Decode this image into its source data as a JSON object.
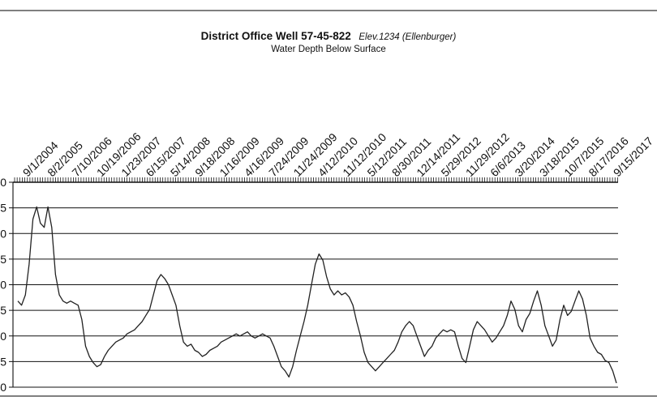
{
  "chart_data": {
    "type": "line",
    "title": "District Office Well 57-45-822",
    "title_note": "Elev.1234 (Ellenburger)",
    "subtitle": "Water Depth Below Surface",
    "x_tick_labels": [
      "9/1/2004",
      "8/2/2005",
      "7/10/2006",
      "10/19/2006",
      "1/23/2007",
      "6/15/2007",
      "5/14/2008",
      "9/18/2008",
      "1/16/2009",
      "4/16/2009",
      "7/24/2009",
      "11/24/2009",
      "4/12/2010",
      "11/12/2010",
      "5/12/2011",
      "8/30/2011",
      "12/14/2011",
      "5/29/2012",
      "11/29/2012",
      "6/6/2013",
      "3/20/2014",
      "3/18/2015",
      "10/7/2015",
      "8/17/2016",
      "9/15/2017"
    ],
    "y_tick_labels": [
      "0",
      "5",
      "0",
      "5",
      "0",
      "5",
      "0",
      "5",
      "0"
    ],
    "grid": true,
    "legend": "none",
    "series": [
      {
        "color": "#222222",
        "y": [
          0.42,
          0.4,
          0.45,
          0.6,
          0.82,
          0.88,
          0.8,
          0.78,
          0.88,
          0.78,
          0.55,
          0.45,
          0.42,
          0.41,
          0.42,
          0.41,
          0.4,
          0.33,
          0.2,
          0.15,
          0.12,
          0.1,
          0.11,
          0.15,
          0.18,
          0.2,
          0.22,
          0.23,
          0.24,
          0.26,
          0.27,
          0.28,
          0.3,
          0.32,
          0.35,
          0.38,
          0.45,
          0.52,
          0.55,
          0.53,
          0.5,
          0.45,
          0.4,
          0.3,
          0.22,
          0.2,
          0.21,
          0.18,
          0.17,
          0.15,
          0.16,
          0.18,
          0.19,
          0.2,
          0.22,
          0.23,
          0.24,
          0.25,
          0.26,
          0.25,
          0.26,
          0.27,
          0.25,
          0.24,
          0.25,
          0.26,
          0.25,
          0.24,
          0.2,
          0.15,
          0.1,
          0.08,
          0.05,
          0.1,
          0.18,
          0.25,
          0.32,
          0.4,
          0.5,
          0.6,
          0.65,
          0.62,
          0.54,
          0.48,
          0.45,
          0.47,
          0.45,
          0.46,
          0.44,
          0.4,
          0.32,
          0.25,
          0.17,
          0.12,
          0.1,
          0.08,
          0.1,
          0.12,
          0.14,
          0.16,
          0.18,
          0.22,
          0.27,
          0.3,
          0.32,
          0.3,
          0.25,
          0.2,
          0.15,
          0.18,
          0.2,
          0.24,
          0.26,
          0.28,
          0.27,
          0.28,
          0.27,
          0.2,
          0.14,
          0.12,
          0.2,
          0.28,
          0.32,
          0.3,
          0.28,
          0.25,
          0.22,
          0.24,
          0.27,
          0.3,
          0.35,
          0.42,
          0.38,
          0.3,
          0.27,
          0.33,
          0.36,
          0.42,
          0.47,
          0.4,
          0.3,
          0.25,
          0.2,
          0.23,
          0.33,
          0.4,
          0.35,
          0.37,
          0.42,
          0.47,
          0.43,
          0.35,
          0.24,
          0.2,
          0.17,
          0.16,
          0.13,
          0.12,
          0.08,
          0.02
        ]
      }
    ]
  }
}
